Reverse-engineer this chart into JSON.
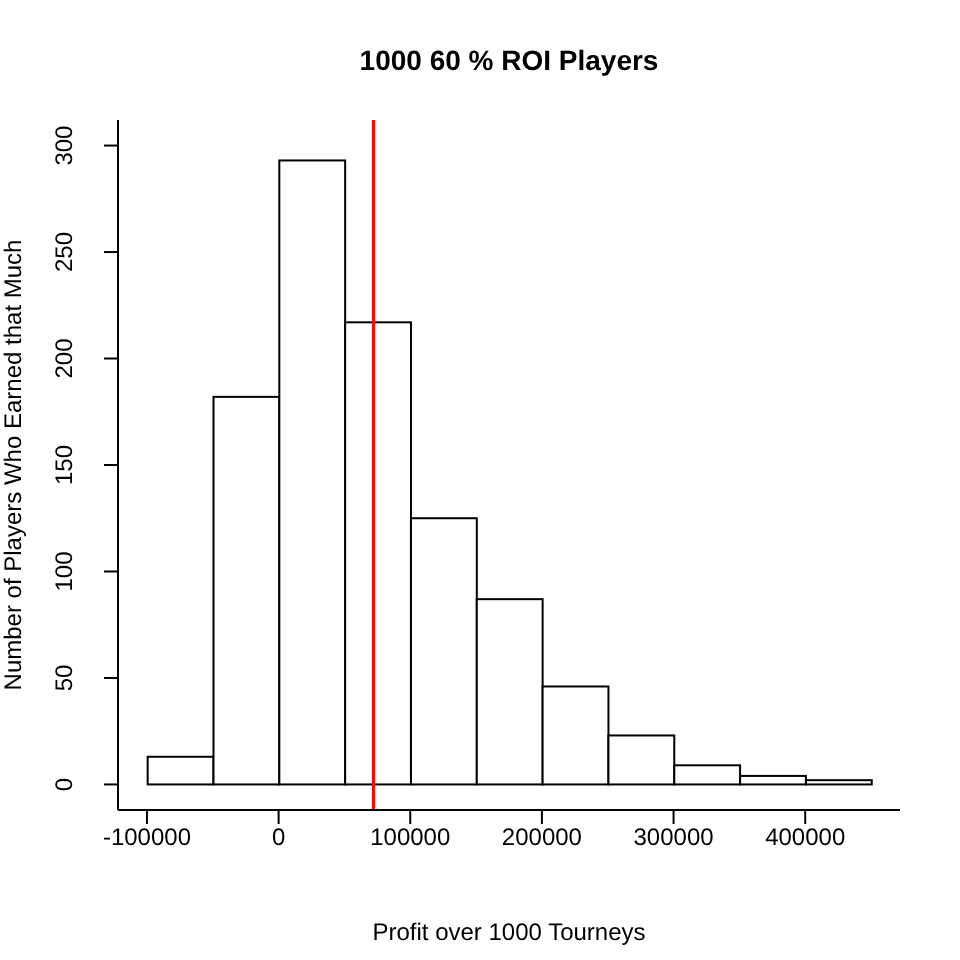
{
  "chart_data": {
    "type": "histogram",
    "title": "1000 60 % ROI Players",
    "xlabel": "Profit over 1000 Tourneys",
    "ylabel": "Number of Players Who Earned that Much",
    "bins": [
      -100000,
      -50000,
      0,
      50000,
      100000,
      150000,
      200000,
      250000,
      300000,
      350000,
      400000,
      450000
    ],
    "values": [
      13,
      182,
      293,
      217,
      125,
      87,
      46,
      23,
      9,
      4,
      2
    ],
    "color": "#ffffff",
    "xlim": [
      -122000,
      472000
    ],
    "xticks": [
      -100000,
      0,
      100000,
      200000,
      300000,
      400000
    ],
    "ylim": [
      -12,
      312
    ],
    "yticks": [
      0,
      50,
      100,
      150,
      200,
      250,
      300
    ],
    "ref_lines": [
      {
        "axis": "x",
        "value": 72000,
        "color": "#ff0000"
      }
    ]
  }
}
